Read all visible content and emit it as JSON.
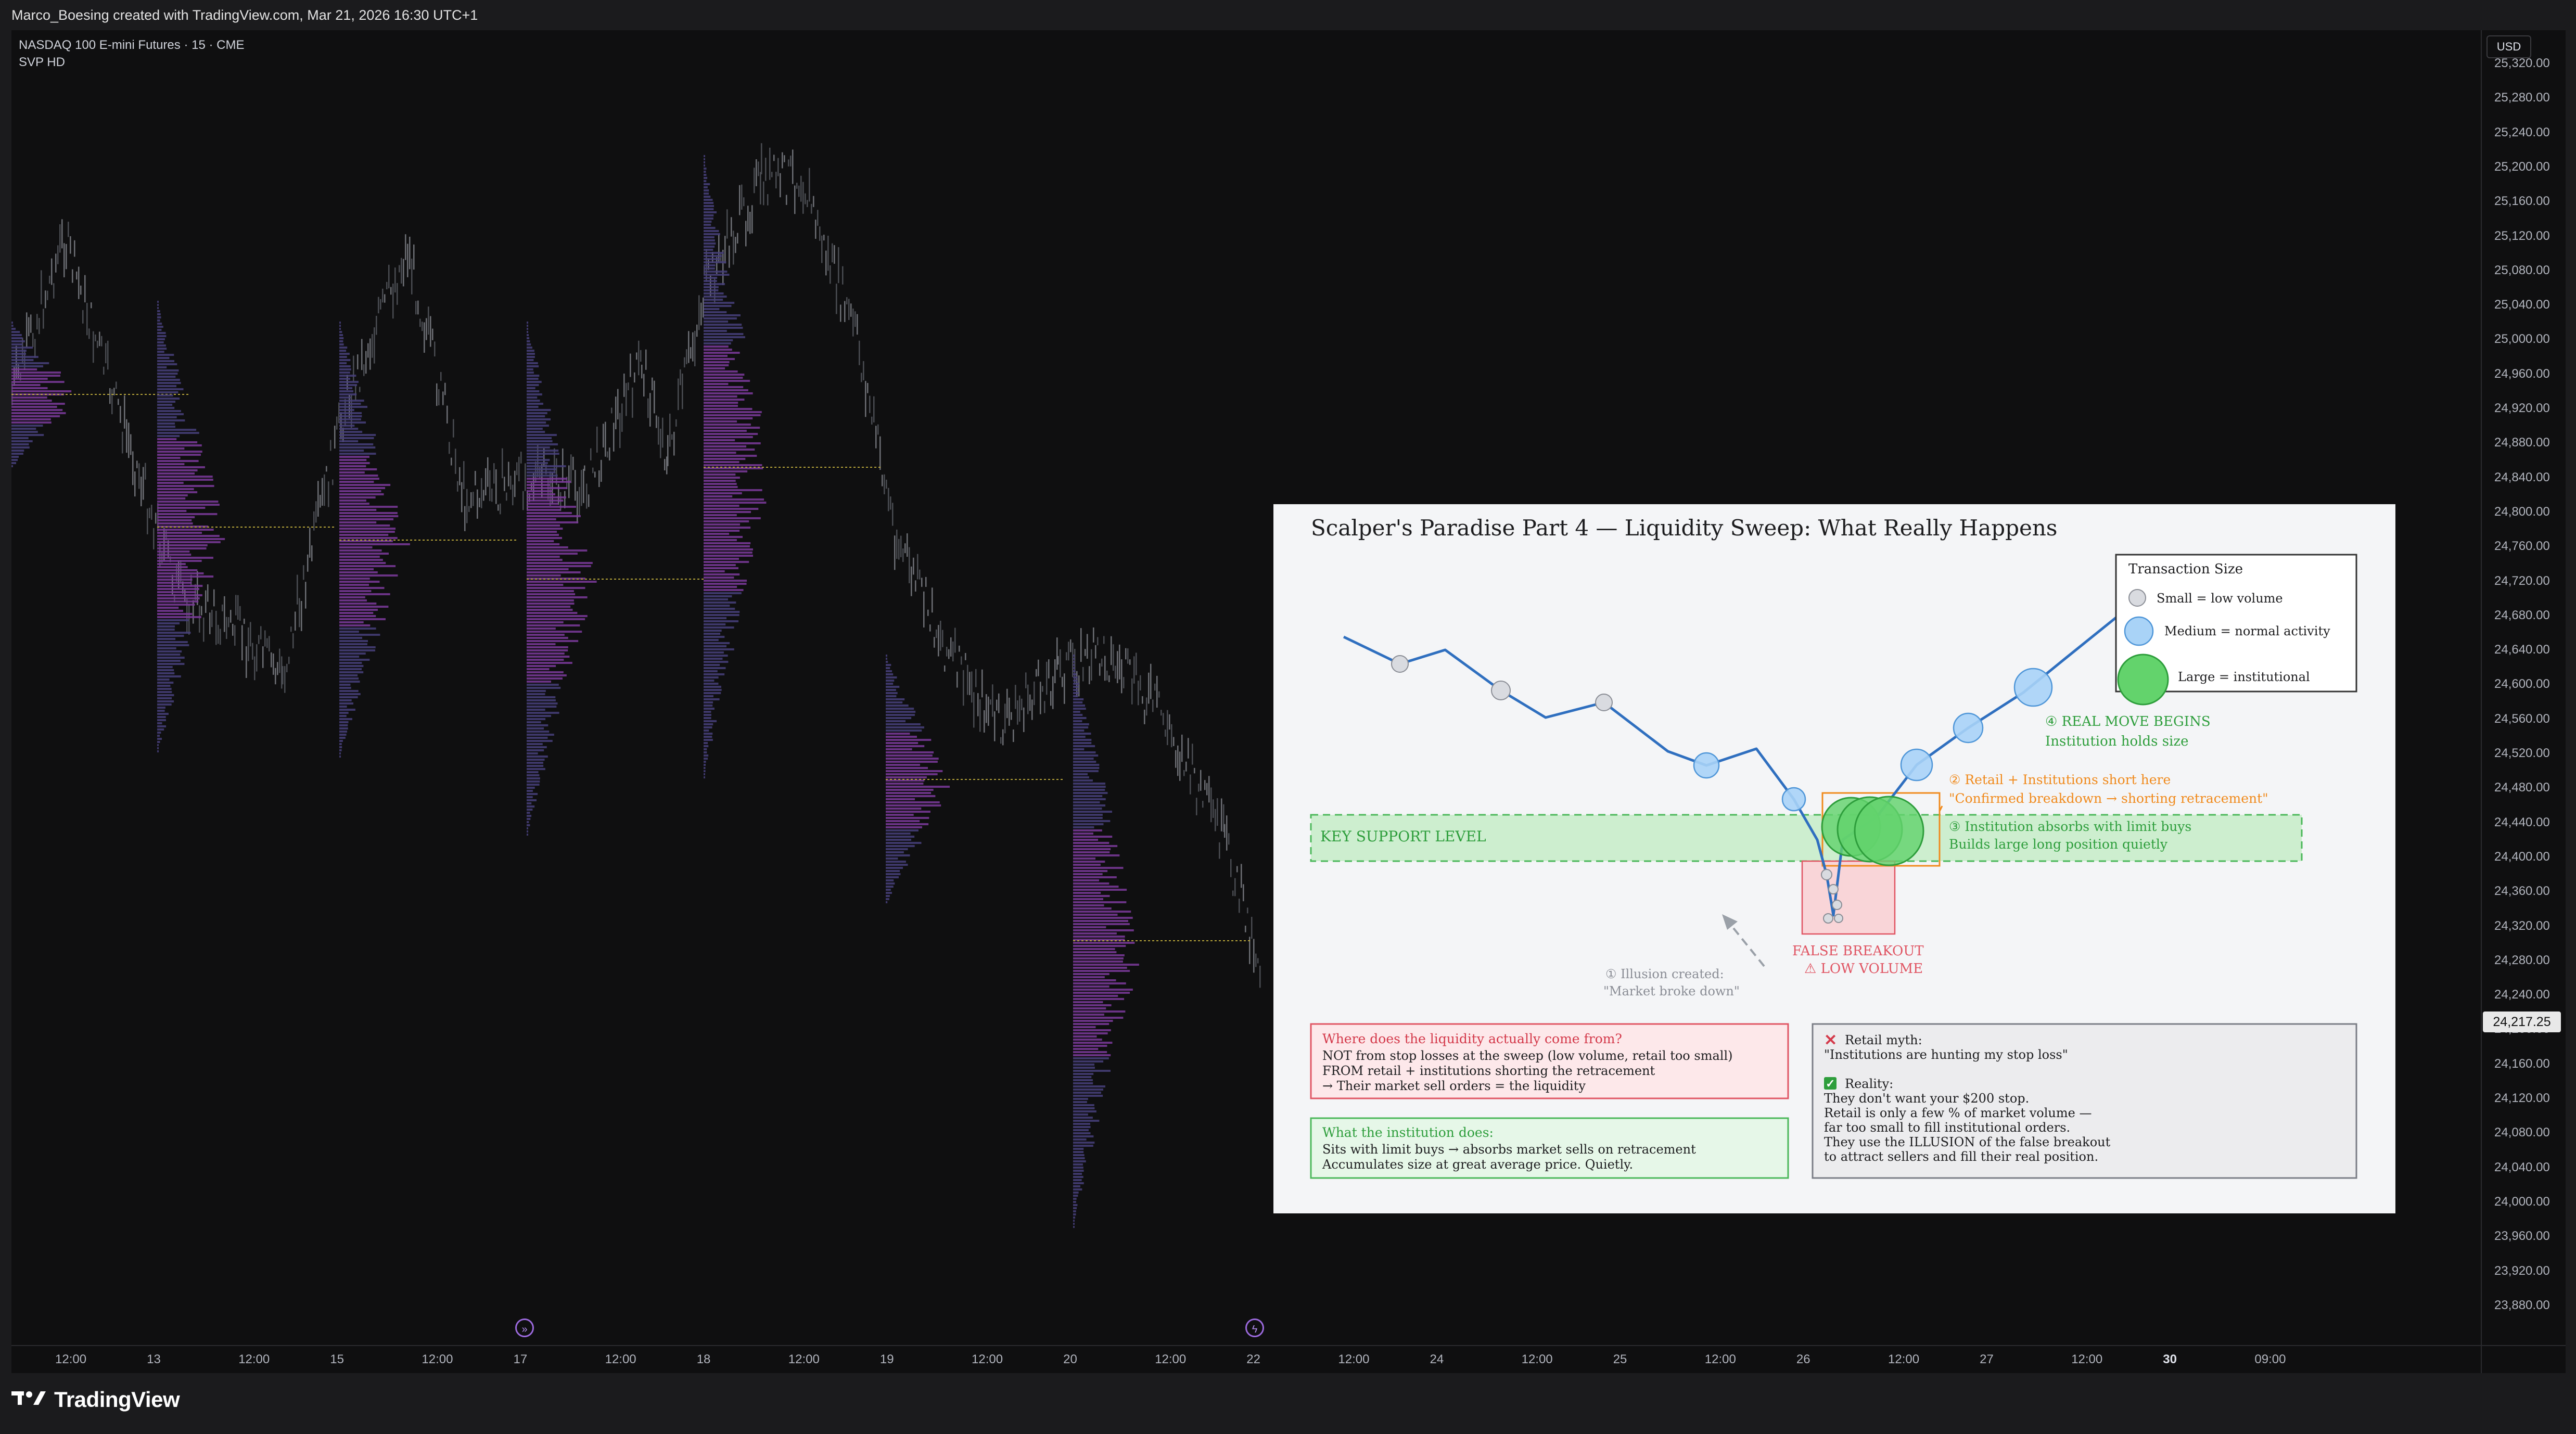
{
  "header": {
    "credit": "Marco_Boesing created with TradingView.com, Mar 21, 2026 16:30 UTC+1"
  },
  "chart_legend": {
    "symbol_line": "NASDAQ 100 E-mini Futures · 15 · CME",
    "indicator": "SVP HD"
  },
  "price_scale": {
    "currency": "USD",
    "ticks": [
      "25,320.00",
      "25,280.00",
      "25,240.00",
      "25,200.00",
      "25,160.00",
      "25,120.00",
      "25,080.00",
      "25,040.00",
      "25,000.00",
      "24,960.00",
      "24,920.00",
      "24,880.00",
      "24,840.00",
      "24,800.00",
      "24,760.00",
      "24,720.00",
      "24,680.00",
      "24,640.00",
      "24,600.00",
      "24,560.00",
      "24,520.00",
      "24,480.00",
      "24,440.00",
      "24,400.00",
      "24,360.00",
      "24,320.00",
      "24,280.00",
      "24,240.00",
      "24,200.00",
      "24,160.00",
      "24,120.00",
      "24,080.00",
      "24,040.00",
      "24,000.00",
      "23,960.00",
      "23,920.00",
      "23,880.00"
    ],
    "last_price": "24,217.25"
  },
  "time_scale": {
    "ticks": [
      {
        "label": "12:00",
        "bold": false
      },
      {
        "label": "13",
        "bold": false
      },
      {
        "label": "12:00",
        "bold": false
      },
      {
        "label": "15",
        "bold": false
      },
      {
        "label": "12:00",
        "bold": false
      },
      {
        "label": "17",
        "bold": false
      },
      {
        "label": "12:00",
        "bold": false
      },
      {
        "label": "18",
        "bold": false
      },
      {
        "label": "12:00",
        "bold": false
      },
      {
        "label": "19",
        "bold": false
      },
      {
        "label": "12:00",
        "bold": false
      },
      {
        "label": "20",
        "bold": false
      },
      {
        "label": "12:00",
        "bold": false
      },
      {
        "label": "22",
        "bold": false
      },
      {
        "label": "12:00",
        "bold": false
      },
      {
        "label": "24",
        "bold": false
      },
      {
        "label": "12:00",
        "bold": false
      },
      {
        "label": "25",
        "bold": false
      },
      {
        "label": "12:00",
        "bold": false
      },
      {
        "label": "26",
        "bold": false
      },
      {
        "label": "12:00",
        "bold": false
      },
      {
        "label": "27",
        "bold": false
      },
      {
        "label": "12:00",
        "bold": false
      },
      {
        "label": "30",
        "bold": true
      },
      {
        "label": "09:00",
        "bold": false
      }
    ]
  },
  "events": [
    {
      "icon": "forward-icon",
      "glyph": "»"
    },
    {
      "icon": "lightning-icon",
      "glyph": "ϟ"
    }
  ],
  "brand": {
    "name": "TradingView"
  },
  "infographic": {
    "title": "Scalper's Paradise Part 4 — Liquidity Sweep: What Really Happens",
    "legend": {
      "title": "Transaction Size",
      "items": [
        {
          "label": "Small = low volume",
          "color": "#d9dbe0"
        },
        {
          "label": "Medium = normal activity",
          "color": "#a9d3f7"
        },
        {
          "label": "Large = institutional",
          "color": "#63d36c"
        }
      ]
    },
    "key_support_label": "KEY SUPPORT LEVEL",
    "false_breakout": [
      "FALSE BREAKOUT",
      "⚠ LOW VOLUME"
    ],
    "illusion": [
      "① Illusion created:",
      "\"Market broke down\""
    ],
    "step2": [
      "② Retail + Institutions short here",
      "\"Confirmed breakdown → shorting retracement\""
    ],
    "step3": [
      "③ Institution absorbs with limit buys",
      "Builds large long position quietly"
    ],
    "step4": [
      "④ REAL MOVE BEGINS",
      "Institution holds size"
    ],
    "liquidity_box": {
      "title": "Where does the liquidity actually come from?",
      "lines": [
        "NOT from stop losses at the sweep (low volume, retail too small)",
        "FROM retail + institutions shorting the retracement",
        "→ Their market sell orders = the liquidity"
      ]
    },
    "institution_box": {
      "title": "What the institution does:",
      "lines": [
        "Sits with limit buys → absorbs market sells on retracement",
        "Accumulates size at great average price. Quietly."
      ]
    },
    "myth_box": {
      "myth_title": "Retail myth:",
      "myth_text": "\"Institutions are hunting my stop loss\"",
      "reality_title": "Reality:",
      "reality_lines": [
        "They don't want your $200 stop.",
        "Retail is only a few % of market volume —",
        "far too small to fill institutional orders.",
        "They use the ILLUSION of the false breakout",
        "to attract sellers and fill their real position."
      ]
    },
    "colors": {
      "line": "#2f6fbf",
      "support": "#4bb85a",
      "breakout": "#e05563",
      "orange": "#f08a1c",
      "green_text": "#2e9e3c"
    }
  }
}
